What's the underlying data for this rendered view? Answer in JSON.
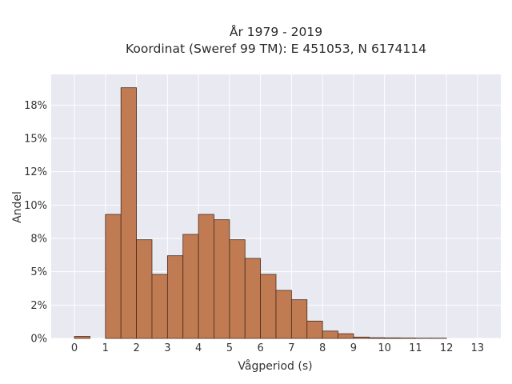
{
  "chart_data": {
    "type": "bar",
    "title": "År 1979 - 2019",
    "subtitle": "Koordinat (Sweref 99 TM): E 451053, N 6174114",
    "xlabel": "Vågperiod (s)",
    "ylabel": "Andel",
    "xlim": [
      -0.75,
      13.75
    ],
    "ylim": [
      0,
      19.8
    ],
    "x_ticks": [
      0,
      1,
      2,
      3,
      4,
      5,
      6,
      7,
      8,
      9,
      10,
      11,
      12,
      13
    ],
    "y_ticks": [
      0,
      2.5,
      5,
      7.5,
      10,
      12.5,
      15,
      17.5
    ],
    "y_tick_labels": [
      "0%",
      "2%",
      "5%",
      "8%",
      "10%",
      "12%",
      "15%",
      "18%"
    ],
    "bin_width": 0.5,
    "bins": [
      {
        "x0": 0.0,
        "value": 0.15
      },
      {
        "x0": 0.5,
        "value": 0.0
      },
      {
        "x0": 1.0,
        "value": 9.3
      },
      {
        "x0": 1.5,
        "value": 18.8
      },
      {
        "x0": 2.0,
        "value": 7.4
      },
      {
        "x0": 2.5,
        "value": 4.8
      },
      {
        "x0": 3.0,
        "value": 6.2
      },
      {
        "x0": 3.5,
        "value": 7.8
      },
      {
        "x0": 4.0,
        "value": 9.3
      },
      {
        "x0": 4.5,
        "value": 8.9
      },
      {
        "x0": 5.0,
        "value": 7.4
      },
      {
        "x0": 5.5,
        "value": 6.0
      },
      {
        "x0": 6.0,
        "value": 4.8
      },
      {
        "x0": 6.5,
        "value": 3.6
      },
      {
        "x0": 7.0,
        "value": 2.9
      },
      {
        "x0": 7.5,
        "value": 1.3
      },
      {
        "x0": 8.0,
        "value": 0.55
      },
      {
        "x0": 8.5,
        "value": 0.35
      },
      {
        "x0": 9.0,
        "value": 0.1
      },
      {
        "x0": 9.5,
        "value": 0.05
      },
      {
        "x0": 10.0,
        "value": 0.04
      },
      {
        "x0": 10.5,
        "value": 0.03
      },
      {
        "x0": 11.0,
        "value": 0.02
      },
      {
        "x0": 11.5,
        "value": 0.02
      }
    ],
    "grid": true,
    "colors": {
      "background": "#e8e9f1",
      "grid": "#ffffff",
      "bar_fill": "#c07b53",
      "bar_stroke": "#4a2c1c"
    }
  }
}
